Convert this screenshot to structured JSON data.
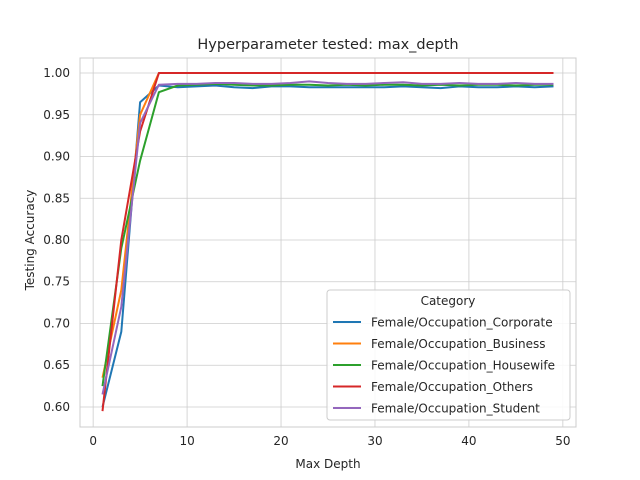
{
  "chart_data": {
    "type": "line",
    "title": "Hyperparameter tested: max_depth",
    "xlabel": "Max Depth",
    "ylabel": "Testing Accuracy",
    "xlim": [
      -1.4,
      51.4
    ],
    "ylim": [
      0.576,
      1.018
    ],
    "xticks": [
      0,
      10,
      20,
      30,
      40,
      50
    ],
    "xtick_labels": [
      "0",
      "10",
      "20",
      "30",
      "40",
      "50"
    ],
    "yticks": [
      0.6,
      0.65,
      0.7,
      0.75,
      0.8,
      0.85,
      0.9,
      0.95,
      1.0
    ],
    "ytick_labels": [
      "0.60",
      "0.65",
      "0.70",
      "0.75",
      "0.80",
      "0.85",
      "0.90",
      "0.95",
      "1.00"
    ],
    "grid": true,
    "legend": {
      "title": "Category",
      "placement": "lower-right"
    },
    "x": [
      1,
      3,
      5,
      7,
      9,
      11,
      13,
      15,
      17,
      19,
      21,
      23,
      25,
      27,
      29,
      31,
      33,
      35,
      37,
      39,
      41,
      43,
      45,
      47,
      49
    ],
    "series": [
      {
        "name": "Female/Occupation_Corporate",
        "color": "#1f77b4",
        "values": [
          0.6,
          0.69,
          0.965,
          0.985,
          0.983,
          0.984,
          0.985,
          0.983,
          0.982,
          0.984,
          0.984,
          0.983,
          0.983,
          0.983,
          0.983,
          0.983,
          0.984,
          0.983,
          0.982,
          0.984,
          0.983,
          0.983,
          0.984,
          0.983,
          0.984
        ]
      },
      {
        "name": "Female/Occupation_Business",
        "color": "#ff7f0e",
        "values": [
          0.635,
          0.74,
          0.95,
          1.0,
          1.0,
          1.0,
          1.0,
          1.0,
          1.0,
          1.0,
          1.0,
          1.0,
          1.0,
          1.0,
          1.0,
          1.0,
          1.0,
          1.0,
          1.0,
          1.0,
          1.0,
          1.0,
          1.0,
          1.0,
          1.0
        ]
      },
      {
        "name": "Female/Occupation_Housewife",
        "color": "#2ca02c",
        "values": [
          0.625,
          0.79,
          0.895,
          0.977,
          0.985,
          0.986,
          0.987,
          0.986,
          0.985,
          0.985,
          0.986,
          0.986,
          0.985,
          0.986,
          0.985,
          0.986,
          0.986,
          0.985,
          0.986,
          0.985,
          0.986,
          0.986,
          0.985,
          0.986,
          0.986
        ]
      },
      {
        "name": "Female/Occupation_Others",
        "color": "#d62728",
        "values": [
          0.595,
          0.8,
          0.93,
          1.0,
          1.0,
          1.0,
          1.0,
          1.0,
          1.0,
          1.0,
          1.0,
          1.0,
          1.0,
          1.0,
          1.0,
          1.0,
          1.0,
          1.0,
          1.0,
          1.0,
          1.0,
          1.0,
          1.0,
          1.0,
          1.0
        ]
      },
      {
        "name": "Female/Occupation_Student",
        "color": "#9467bd",
        "values": [
          0.615,
          0.72,
          0.94,
          0.986,
          0.987,
          0.987,
          0.988,
          0.988,
          0.987,
          0.987,
          0.988,
          0.99,
          0.988,
          0.987,
          0.987,
          0.988,
          0.989,
          0.987,
          0.987,
          0.988,
          0.987,
          0.987,
          0.988,
          0.987,
          0.987
        ]
      }
    ]
  }
}
